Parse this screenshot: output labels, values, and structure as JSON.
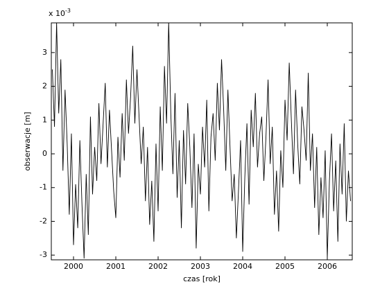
{
  "chart_data": {
    "type": "line",
    "xlabel": "czas [rok]",
    "ylabel": "obserwacje [m]",
    "y_multiplier": {
      "base": "x 10",
      "exponent": "-3"
    },
    "xlim": [
      1999.475,
      2006.59
    ],
    "xticks": [
      2000,
      2001,
      2002,
      2003,
      2004,
      2005,
      2006
    ],
    "ylim": [
      -3.14,
      3.88
    ],
    "yticks": [
      -3,
      -2,
      -1,
      0,
      1,
      2,
      3
    ],
    "color": "#000000",
    "x": [
      1999.5,
      1999.55,
      1999.6,
      1999.65,
      1999.7,
      1999.75,
      1999.8,
      1999.85,
      1999.9,
      1999.95,
      2000,
      2000.05,
      2000.1,
      2000.15,
      2000.2,
      2000.25,
      2000.3,
      2000.35,
      2000.4,
      2000.45,
      2000.5,
      2000.55,
      2000.6,
      2000.65,
      2000.7,
      2000.75,
      2000.8,
      2000.85,
      2000.9,
      2000.95,
      2001,
      2001.05,
      2001.1,
      2001.15,
      2001.2,
      2001.25,
      2001.3,
      2001.35,
      2001.4,
      2001.45,
      2001.5,
      2001.55,
      2001.6,
      2001.65,
      2001.7,
      2001.75,
      2001.8,
      2001.85,
      2001.9,
      2001.95,
      2002,
      2002.05,
      2002.1,
      2002.15,
      2002.2,
      2002.25,
      2002.3,
      2002.35,
      2002.4,
      2002.45,
      2002.5,
      2002.55,
      2002.6,
      2002.65,
      2002.7,
      2002.75,
      2002.8,
      2002.85,
      2002.9,
      2002.95,
      2003,
      2003.05,
      2003.1,
      2003.15,
      2003.2,
      2003.25,
      2003.3,
      2003.35,
      2003.4,
      2003.45,
      2003.5,
      2003.55,
      2003.6,
      2003.65,
      2003.7,
      2003.75,
      2003.8,
      2003.85,
      2003.9,
      2003.95,
      2004,
      2004.05,
      2004.1,
      2004.15,
      2004.2,
      2004.25,
      2004.3,
      2004.35,
      2004.4,
      2004.45,
      2004.5,
      2004.55,
      2004.6,
      2004.65,
      2004.7,
      2004.75,
      2004.8,
      2004.85,
      2004.9,
      2004.95,
      2005,
      2005.05,
      2005.1,
      2005.15,
      2005.2,
      2005.25,
      2005.3,
      2005.35,
      2005.4,
      2005.45,
      2005.5,
      2005.55,
      2005.6,
      2005.65,
      2005.7,
      2005.75,
      2005.8,
      2005.85,
      2005.9,
      2005.95,
      2006,
      2006.05,
      2006.1,
      2006.15,
      2006.2,
      2006.25,
      2006.3,
      2006.35,
      2006.4,
      2006.45,
      2006.5,
      2006.55
    ],
    "values": [
      2.5,
      0.8,
      3.9,
      1.2,
      2.8,
      -0.5,
      1.9,
      0.3,
      -1.8,
      0.6,
      -2.7,
      -0.9,
      -2.2,
      0.4,
      -1.5,
      -3.1,
      -0.6,
      -2.4,
      1.1,
      -1.2,
      0.2,
      -0.8,
      1.5,
      -0.3,
      0.9,
      2.1,
      -0.4,
      1.3,
      0.1,
      -1.1,
      -1.9,
      0.5,
      -0.7,
      1.2,
      -0.2,
      2.2,
      0.6,
      1.7,
      3.2,
      0.9,
      2.5,
      1.1,
      -0.3,
      0.8,
      -1.4,
      0.2,
      -2.1,
      -0.8,
      -2.6,
      0.3,
      -1.7,
      1.4,
      -0.5,
      2.6,
      0.9,
      3.9,
      1.2,
      -0.6,
      1.8,
      -1.3,
      0.4,
      -2.2,
      0.7,
      -0.9,
      1.5,
      0.2,
      -1.6,
      0.6,
      -2.8,
      -0.3,
      -1.2,
      0.8,
      -0.4,
      1.6,
      -1.7,
      0.5,
      1.2,
      -0.2,
      2.1,
      0.7,
      2.8,
      1.3,
      -0.5,
      1.9,
      0.2,
      -1.4,
      -0.6,
      -2.5,
      -1.1,
      0.4,
      -2.9,
      -0.7,
      0.9,
      -1.5,
      1.3,
      0.2,
      1.8,
      -0.4,
      0.6,
      1.1,
      -0.8,
      0.5,
      2.2,
      -0.3,
      0.8,
      -1.8,
      -0.5,
      -2.3,
      0.1,
      -1.0,
      1.6,
      0.4,
      2.7,
      1.0,
      -0.6,
      1.9,
      0.3,
      -0.9,
      1.4,
      0.7,
      -0.2,
      2.4,
      -0.5,
      0.6,
      -1.6,
      0.2,
      -2.4,
      -0.7,
      -1.9,
      0.1,
      -3.1,
      -0.8,
      0.6,
      -1.7,
      -0.2,
      -2.6,
      0.3,
      -1.2,
      0.9,
      -2.0,
      -0.5,
      -1.4
    ]
  }
}
